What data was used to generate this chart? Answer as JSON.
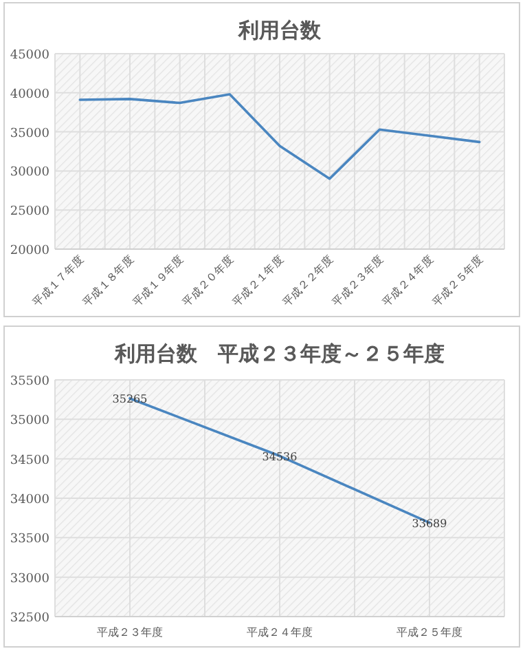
{
  "chart_data": [
    {
      "type": "line",
      "title": "利用台数",
      "categories": [
        "平成１７年度",
        "平成１８年度",
        "平成１９年度",
        "平成２０年度",
        "平成２１年度",
        "平成２２年度",
        "平成２３年度",
        "平成２４年度",
        "平成２５年度"
      ],
      "series": [
        {
          "color": "#4a86c0",
          "values": [
            39100,
            39200,
            38700,
            39800,
            33200,
            29000,
            35300,
            34500,
            33700
          ]
        }
      ],
      "ylim": [
        20000,
        45000
      ],
      "yticks": [
        20000,
        25000,
        30000,
        35000,
        40000,
        45000
      ],
      "grid": true,
      "marker": "none",
      "line_style": "solid"
    },
    {
      "type": "line",
      "title": "利用台数　平成２３年度～２５年度",
      "categories": [
        "平成２３年度",
        "平成２４年度",
        "平成２５年度"
      ],
      "series": [
        {
          "color": "#4a86c0",
          "values": [
            35265,
            34536,
            33689
          ]
        }
      ],
      "ylim": [
        32500,
        35500
      ],
      "yticks": [
        32500,
        33000,
        33500,
        34000,
        34500,
        35000,
        35500
      ],
      "grid": true,
      "marker": "none",
      "line_style": "solid",
      "data_labels": true
    }
  ]
}
